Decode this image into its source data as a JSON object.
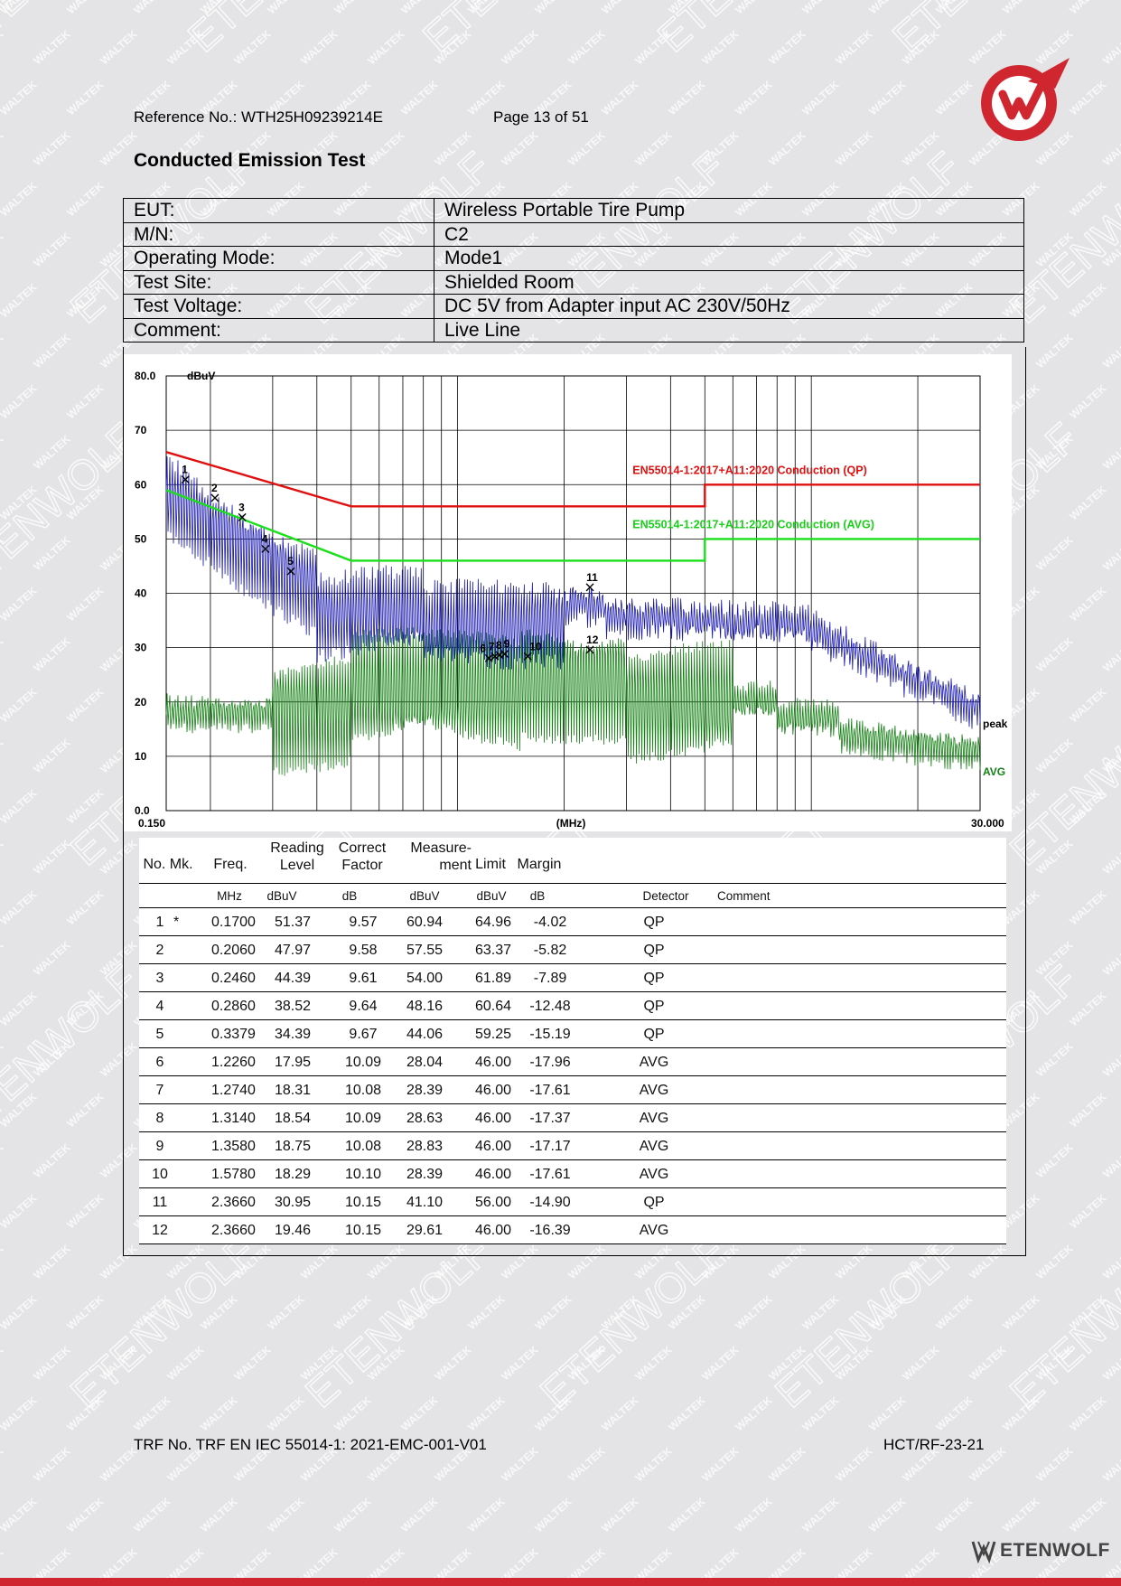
{
  "header": {
    "reference": "Reference No.: WTH25H09239214E",
    "page": "Page 13 of 51"
  },
  "title": "Conducted Emission Test",
  "info_rows": [
    {
      "label": "EUT:",
      "value": "Wireless Portable Tire Pump"
    },
    {
      "label": "M/N:",
      "value": "C2"
    },
    {
      "label": "Operating Mode:",
      "value": "Mode1"
    },
    {
      "label": "Test Site:",
      "value": "Shielded Room"
    },
    {
      "label": "Test Voltage:",
      "value": "DC 5V from Adapter input AC 230V/50Hz"
    },
    {
      "label": "Comment:",
      "value": "Live Line"
    }
  ],
  "chart_data": {
    "type": "line",
    "xscale": "log",
    "xlim": [
      0.15,
      30.0
    ],
    "ylim": [
      0,
      80
    ],
    "ylabel": "dBuV",
    "xlabel": "(MHz)",
    "x_tick_labels": [
      "0.150",
      "30.000"
    ],
    "y_tick_labels": [
      "80.0",
      "70",
      "60",
      "50",
      "40",
      "30",
      "20",
      "10",
      "0.0"
    ],
    "grid": true,
    "limit_lines": [
      {
        "name": "EN55014-1:2017+A11:2020 Conduction (QP)",
        "color": "#e01010",
        "points": [
          [
            0.15,
            66
          ],
          [
            0.5,
            56
          ],
          [
            5,
            56
          ],
          [
            5,
            60
          ],
          [
            30,
            60
          ]
        ]
      },
      {
        "name": "EN55014-1:2017+A11:2020 Conduction (AVG)",
        "color": "#19e019",
        "points": [
          [
            0.15,
            59
          ],
          [
            0.5,
            46
          ],
          [
            5,
            46
          ],
          [
            5,
            50
          ],
          [
            30,
            50
          ]
        ]
      }
    ],
    "series": [
      {
        "name": "peak",
        "color": "#1a1ab0"
      },
      {
        "name": "AVG",
        "color": "#138013"
      }
    ],
    "markers": [
      {
        "no": "1",
        "x": 0.17,
        "y": 60.94
      },
      {
        "no": "2",
        "x": 0.206,
        "y": 57.55
      },
      {
        "no": "3",
        "x": 0.246,
        "y": 54.0
      },
      {
        "no": "4",
        "x": 0.286,
        "y": 48.16
      },
      {
        "no": "5",
        "x": 0.3379,
        "y": 44.06
      },
      {
        "no": "6",
        "x": 1.226,
        "y": 28.04
      },
      {
        "no": "7",
        "x": 1.274,
        "y": 28.39
      },
      {
        "no": "8",
        "x": 1.314,
        "y": 28.63
      },
      {
        "no": "9",
        "x": 1.358,
        "y": 28.83
      },
      {
        "no": "10",
        "x": 1.578,
        "y": 28.39
      },
      {
        "no": "11",
        "x": 2.366,
        "y": 41.1
      },
      {
        "no": "12",
        "x": 2.366,
        "y": 29.61
      }
    ]
  },
  "results": {
    "headers": [
      "No. Mk.",
      "Freq.",
      "Reading\nLevel",
      "Correct\nFactor",
      "Measure-\nment",
      "Limit",
      "Margin"
    ],
    "units": [
      "MHz",
      "dBuV",
      "dB",
      "dBuV",
      "dBuV",
      "dB",
      "Detector",
      "Comment"
    ],
    "rows": [
      {
        "no": "1",
        "mk": "*",
        "freq": "0.1700",
        "reading": "51.37",
        "factor": "9.57",
        "measure": "60.94",
        "limit": "64.96",
        "margin": "-4.02",
        "detector": "QP"
      },
      {
        "no": "2",
        "mk": "",
        "freq": "0.2060",
        "reading": "47.97",
        "factor": "9.58",
        "measure": "57.55",
        "limit": "63.37",
        "margin": "-5.82",
        "detector": "QP"
      },
      {
        "no": "3",
        "mk": "",
        "freq": "0.2460",
        "reading": "44.39",
        "factor": "9.61",
        "measure": "54.00",
        "limit": "61.89",
        "margin": "-7.89",
        "detector": "QP"
      },
      {
        "no": "4",
        "mk": "",
        "freq": "0.2860",
        "reading": "38.52",
        "factor": "9.64",
        "measure": "48.16",
        "limit": "60.64",
        "margin": "-12.48",
        "detector": "QP"
      },
      {
        "no": "5",
        "mk": "",
        "freq": "0.3379",
        "reading": "34.39",
        "factor": "9.67",
        "measure": "44.06",
        "limit": "59.25",
        "margin": "-15.19",
        "detector": "QP"
      },
      {
        "no": "6",
        "mk": "",
        "freq": "1.2260",
        "reading": "17.95",
        "factor": "10.09",
        "measure": "28.04",
        "limit": "46.00",
        "margin": "-17.96",
        "detector": "AVG"
      },
      {
        "no": "7",
        "mk": "",
        "freq": "1.2740",
        "reading": "18.31",
        "factor": "10.08",
        "measure": "28.39",
        "limit": "46.00",
        "margin": "-17.61",
        "detector": "AVG"
      },
      {
        "no": "8",
        "mk": "",
        "freq": "1.3140",
        "reading": "18.54",
        "factor": "10.09",
        "measure": "28.63",
        "limit": "46.00",
        "margin": "-17.37",
        "detector": "AVG"
      },
      {
        "no": "9",
        "mk": "",
        "freq": "1.3580",
        "reading": "18.75",
        "factor": "10.08",
        "measure": "28.83",
        "limit": "46.00",
        "margin": "-17.17",
        "detector": "AVG"
      },
      {
        "no": "10",
        "mk": "",
        "freq": "1.5780",
        "reading": "18.29",
        "factor": "10.10",
        "measure": "28.39",
        "limit": "46.00",
        "margin": "-17.61",
        "detector": "AVG"
      },
      {
        "no": "11",
        "mk": "",
        "freq": "2.3660",
        "reading": "30.95",
        "factor": "10.15",
        "measure": "41.10",
        "limit": "56.00",
        "margin": "-14.90",
        "detector": "QP"
      },
      {
        "no": "12",
        "mk": "",
        "freq": "2.3660",
        "reading": "19.46",
        "factor": "10.15",
        "measure": "29.61",
        "limit": "46.00",
        "margin": "-16.39",
        "detector": "AVG"
      }
    ]
  },
  "footer": {
    "trf": "TRF No. TRF EN IEC 55014-1: 2021-EMC-001-V01",
    "code": "HCT/RF-23-21"
  },
  "brand": {
    "name": "ETENWOLF",
    "watermark_texts": [
      "WALTEK",
      "ETENWOLF"
    ],
    "logo_color": "#d0262f"
  }
}
